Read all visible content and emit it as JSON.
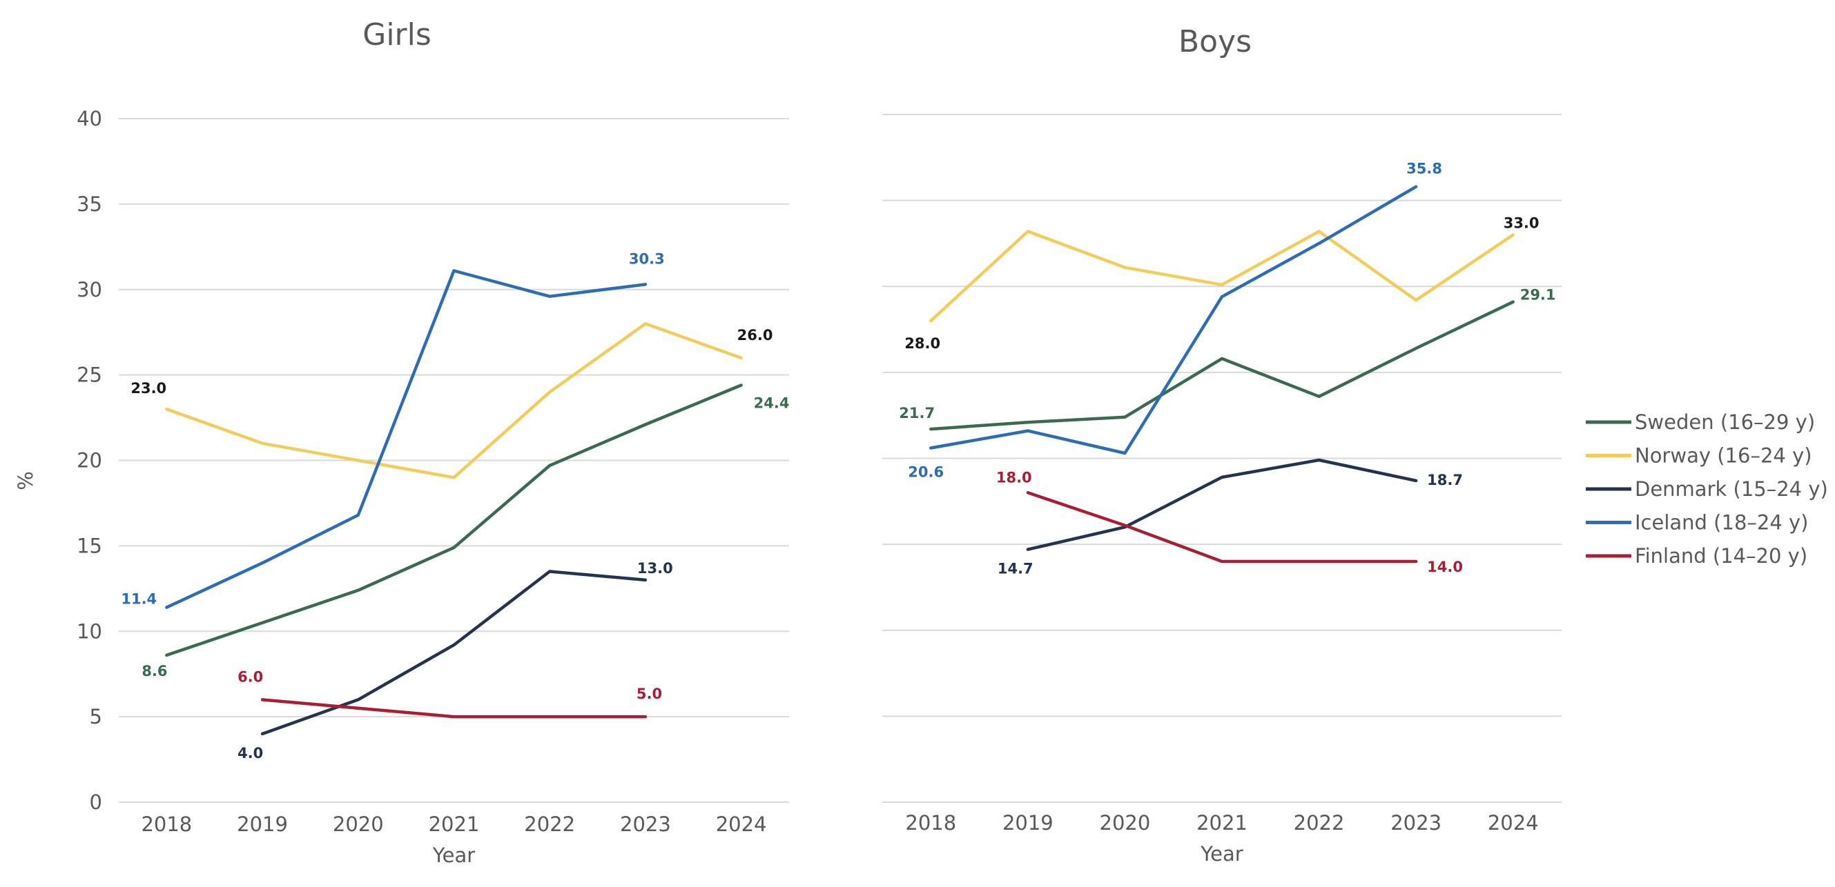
{
  "colors": {
    "sweden": "#3a6b4f",
    "norway": "#f2cd5b",
    "denmark": "#24344f",
    "iceland": "#2e6db3",
    "finland": "#a81f33",
    "neutral_label": "#1a1a1a"
  },
  "legend_position": "right",
  "chart_data": [
    {
      "type": "line",
      "title": "Girls",
      "xlabel": "Year",
      "ylabel": "%",
      "ylim": [
        0,
        40
      ],
      "yticks": [
        "0",
        "5",
        "10",
        "15",
        "20",
        "25",
        "30",
        "35",
        "40"
      ],
      "categories": [
        "2018",
        "2019",
        "2020",
        "2021",
        "2022",
        "2023",
        "2024"
      ],
      "grid": true,
      "series": [
        {
          "name": "Sweden (16–29 y)",
          "color_key": "sweden",
          "values": [
            8.6,
            10.5,
            12.4,
            14.9,
            19.7,
            22.1,
            24.4
          ],
          "labels": [
            {
              "index": 0,
              "text": "8.6",
              "color_key": "sweden"
            },
            {
              "index": 6,
              "text": "24.4",
              "color_key": "sweden"
            }
          ]
        },
        {
          "name": "Norway (16–24 y)",
          "color_key": "norway",
          "values": [
            23.0,
            21.0,
            20.0,
            19.0,
            24.0,
            28.0,
            26.0
          ],
          "labels": [
            {
              "index": 0,
              "text": "23.0",
              "color_key": "neutral_label"
            },
            {
              "index": 6,
              "text": "26.0",
              "color_key": "neutral_label"
            }
          ]
        },
        {
          "name": "Denmark (15–24 y)",
          "color_key": "denmark",
          "values": [
            null,
            4.0,
            6.0,
            9.2,
            13.5,
            13.0,
            null
          ],
          "labels": [
            {
              "index": 1,
              "text": "4.0",
              "color_key": "denmark"
            },
            {
              "index": 5,
              "text": "13.0",
              "color_key": "denmark"
            }
          ]
        },
        {
          "name": "Iceland (18–24 y)",
          "color_key": "iceland",
          "values": [
            11.4,
            14.0,
            16.8,
            31.1,
            29.6,
            30.3,
            null
          ],
          "labels": [
            {
              "index": 0,
              "text": "11.4",
              "color_key": "iceland"
            },
            {
              "index": 5,
              "text": "30.3",
              "color_key": "iceland"
            }
          ]
        },
        {
          "name": "Finland (14–20 y)",
          "color_key": "finland",
          "values": [
            null,
            6.0,
            5.5,
            5.0,
            5.0,
            5.0,
            null
          ],
          "labels": [
            {
              "index": 1,
              "text": "6.0",
              "color_key": "finland"
            },
            {
              "index": 5,
              "text": "5.0",
              "color_key": "finland"
            }
          ]
        }
      ]
    },
    {
      "type": "line",
      "title": "Boys",
      "xlabel": "Year",
      "ylabel": "",
      "ylim": [
        0,
        40
      ],
      "categories": [
        "2018",
        "2019",
        "2020",
        "2021",
        "2022",
        "2023",
        "2024"
      ],
      "grid": true,
      "series": [
        {
          "name": "Sweden (16–29 y)",
          "color_key": "sweden",
          "values": [
            21.7,
            22.1,
            22.4,
            25.8,
            23.6,
            26.4,
            29.1
          ],
          "labels": [
            {
              "index": 0,
              "text": "21.7",
              "color_key": "sweden"
            },
            {
              "index": 6,
              "text": "29.1",
              "color_key": "sweden"
            }
          ]
        },
        {
          "name": "Norway (16–24 y)",
          "color_key": "norway",
          "values": [
            28.0,
            33.2,
            31.1,
            30.1,
            33.2,
            29.2,
            33.0
          ],
          "labels": [
            {
              "index": 0,
              "text": "28.0",
              "color_key": "neutral_label"
            },
            {
              "index": 6,
              "text": "33.0",
              "color_key": "neutral_label"
            }
          ]
        },
        {
          "name": "Denmark (15–24 y)",
          "color_key": "denmark",
          "values": [
            null,
            14.7,
            16.0,
            18.9,
            19.9,
            18.7,
            null
          ],
          "labels": [
            {
              "index": 1,
              "text": "14.7",
              "color_key": "denmark"
            },
            {
              "index": 5,
              "text": "18.7",
              "color_key": "denmark"
            }
          ]
        },
        {
          "name": "Iceland (18–24 y)",
          "color_key": "iceland",
          "values": [
            20.6,
            21.6,
            20.3,
            29.4,
            32.5,
            35.8,
            null
          ],
          "labels": [
            {
              "index": 0,
              "text": "20.6",
              "color_key": "iceland"
            },
            {
              "index": 5,
              "text": "35.8",
              "color_key": "iceland"
            }
          ]
        },
        {
          "name": "Finland (14–20 y)",
          "color_key": "finland",
          "values": [
            null,
            18.0,
            16.1,
            14.0,
            14.0,
            14.0,
            null
          ],
          "labels": [
            {
              "index": 1,
              "text": "18.0",
              "color_key": "finland"
            },
            {
              "index": 5,
              "text": "14.0",
              "color_key": "finland"
            }
          ]
        }
      ]
    }
  ]
}
